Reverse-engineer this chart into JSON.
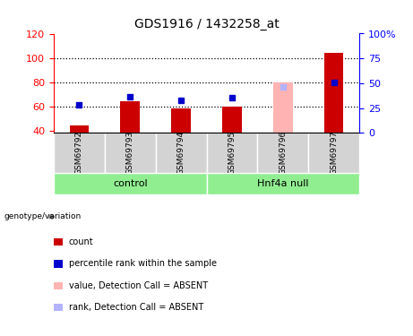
{
  "title": "GDS1916 / 1432258_at",
  "samples": [
    "GSM69792",
    "GSM69793",
    "GSM69794",
    "GSM69795",
    "GSM69796",
    "GSM69797"
  ],
  "ylim_left": [
    38,
    120
  ],
  "ylim_right": [
    0,
    100
  ],
  "yticks_left": [
    40,
    60,
    80,
    100,
    120
  ],
  "yticks_right": [
    0,
    25,
    50,
    75,
    100
  ],
  "ytick_labels_right": [
    "0",
    "25",
    "50",
    "75",
    "100%"
  ],
  "bar_values": [
    44,
    64,
    58,
    60,
    80,
    104
  ],
  "bar_colors": [
    "#cc0000",
    "#cc0000",
    "#cc0000",
    "#cc0000",
    "#ffb3b3",
    "#cc0000"
  ],
  "dot_values": [
    61,
    68,
    65,
    67,
    76,
    80
  ],
  "dot_colors": [
    "#0000cc",
    "#0000cc",
    "#0000cc",
    "#0000cc",
    "#b3b3ff",
    "#0000cc"
  ],
  "ybase": 38,
  "hgrid_lines": [
    60,
    80,
    100
  ],
  "group_color": "#90ee90",
  "sample_box_color": "#d3d3d3",
  "legend_items": [
    {
      "label": "count",
      "color": "#cc0000"
    },
    {
      "label": "percentile rank within the sample",
      "color": "#0000cc"
    },
    {
      "label": "value, Detection Call = ABSENT",
      "color": "#ffb3b3"
    },
    {
      "label": "rank, Detection Call = ABSENT",
      "color": "#b3b3ff"
    }
  ]
}
